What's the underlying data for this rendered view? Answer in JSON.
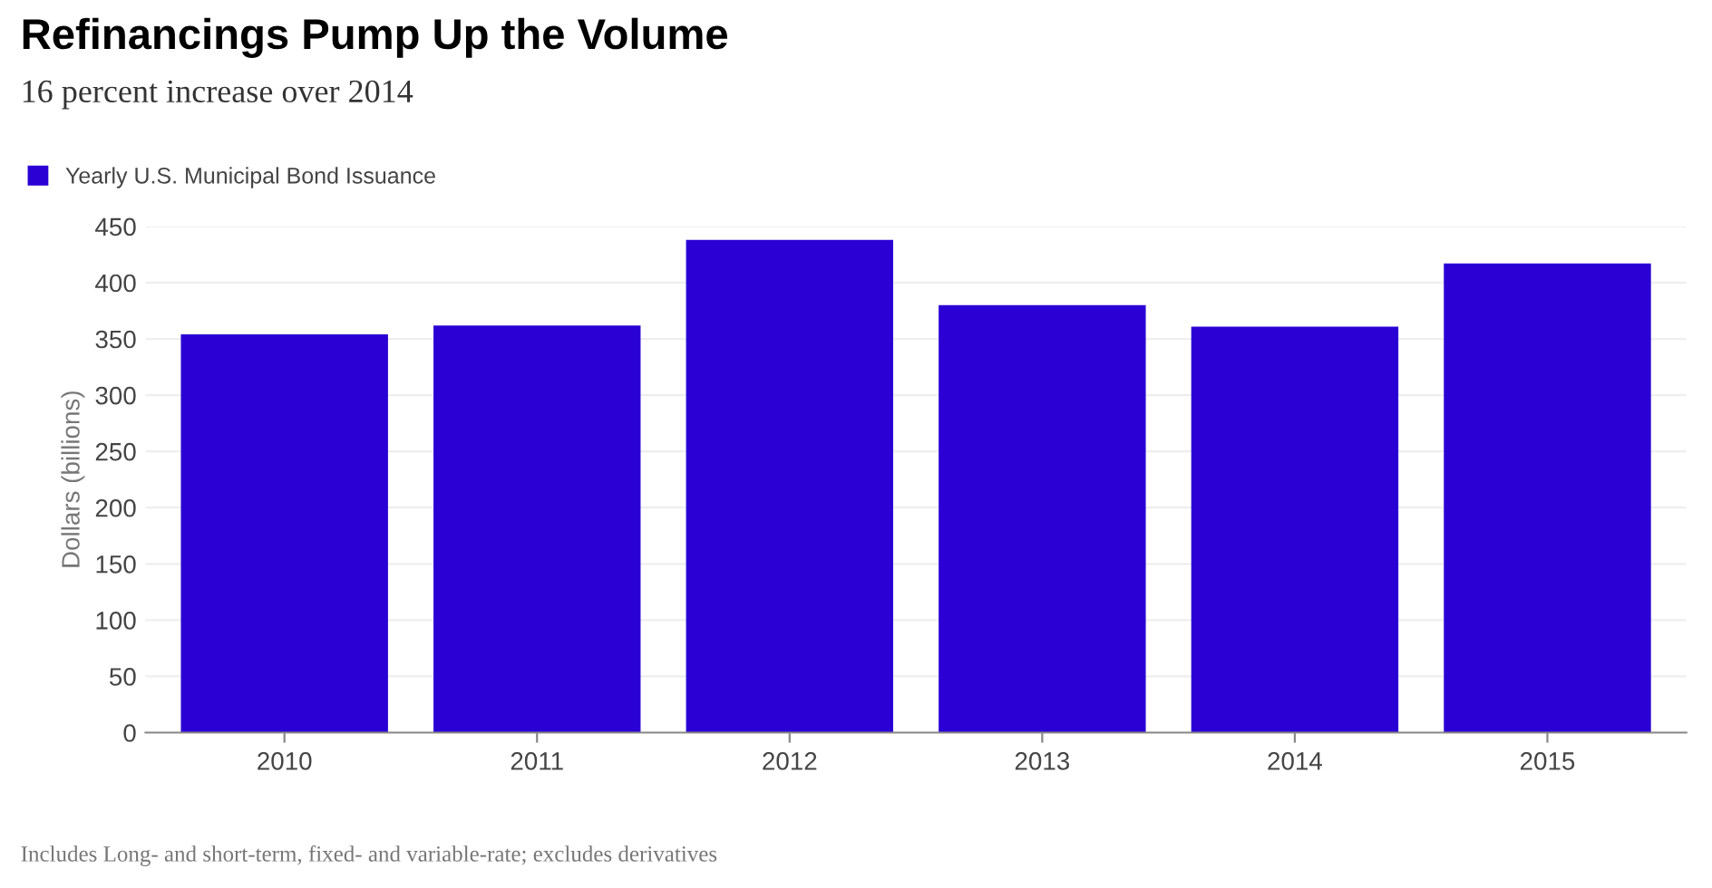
{
  "chart_data": {
    "type": "bar",
    "title": "Refinancings Pump Up the Volume",
    "subtitle": "16 percent increase over 2014",
    "ylabel": "Dollars (billions)",
    "categories": [
      "2010",
      "2011",
      "2012",
      "2013",
      "2014",
      "2015"
    ],
    "series": [
      {
        "name": "Yearly U.S. Municipal Bond Issuance",
        "color": "#2a00d4",
        "values": [
          354,
          362,
          438,
          380,
          361,
          417
        ]
      }
    ],
    "ylim": [
      0,
      450
    ],
    "yticks": [
      0,
      50,
      100,
      150,
      200,
      250,
      300,
      350,
      400,
      450
    ],
    "grid": "y",
    "legend": "top left",
    "annotations": [
      "Includes Long- and short-term, fixed- and variable-rate; excludes derivatives"
    ]
  }
}
